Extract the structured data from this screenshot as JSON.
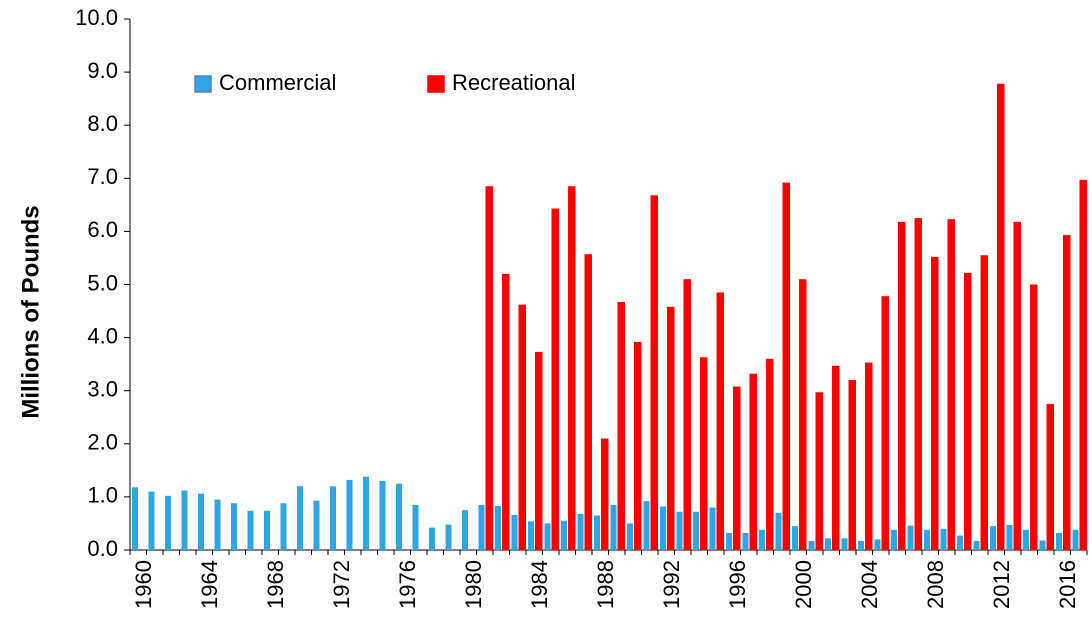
{
  "chart_data": {
    "type": "bar",
    "y_label": "Millions of Pounds",
    "categories": [
      "1960",
      null,
      null,
      null,
      "1964",
      null,
      null,
      null,
      "1968",
      null,
      null,
      null,
      "1972",
      null,
      null,
      null,
      "1976",
      null,
      null,
      null,
      "1980",
      null,
      null,
      null,
      "1984",
      null,
      null,
      null,
      "1988",
      null,
      null,
      null,
      "1992",
      null,
      null,
      null,
      "1996",
      null,
      null,
      null,
      "2000",
      null,
      null,
      null,
      "2004",
      null,
      null,
      null,
      "2008",
      null,
      null,
      null,
      "2012",
      null,
      null,
      null,
      "2016",
      null
    ],
    "series": [
      {
        "name": "Commercial",
        "color": "#2ea6e3",
        "values": [
          1.18,
          1.1,
          1.02,
          1.12,
          1.06,
          0.95,
          0.88,
          0.74,
          0.74,
          0.88,
          1.2,
          0.93,
          1.2,
          1.32,
          1.38,
          1.3,
          1.25,
          0.85,
          0.42,
          0.48,
          0.75,
          0.85,
          0.83,
          0.66,
          0.54,
          0.5,
          0.55,
          0.68,
          0.65,
          0.85,
          0.5,
          0.92,
          0.82,
          0.72,
          0.72,
          0.8,
          0.32,
          0.32,
          0.38,
          0.7,
          0.45,
          0.17,
          0.22,
          0.22,
          0.17,
          0.2,
          0.38,
          0.46,
          0.38,
          0.4,
          0.27,
          0.17,
          0.45,
          0.47,
          0.38,
          0.18,
          0.32,
          0.38
        ]
      },
      {
        "name": "Recreational",
        "color": "#ff0000",
        "values": [
          null,
          null,
          null,
          null,
          null,
          null,
          null,
          null,
          null,
          null,
          null,
          null,
          null,
          null,
          null,
          null,
          null,
          null,
          null,
          null,
          null,
          6.85,
          5.2,
          4.62,
          3.73,
          6.43,
          6.85,
          5.57,
          2.1,
          4.67,
          3.92,
          6.68,
          4.58,
          5.1,
          3.63,
          4.85,
          3.08,
          3.32,
          3.6,
          6.92,
          5.1,
          2.97,
          3.47,
          3.2,
          3.53,
          4.78,
          6.18,
          6.25,
          5.52,
          6.23,
          5.22,
          5.55,
          8.78,
          6.18,
          5.0,
          2.75,
          5.93,
          6.97
        ]
      }
    ],
    "ylim": [
      0,
      10
    ],
    "yticks": [
      {
        "value": 0,
        "label": "0.0"
      },
      {
        "value": 1,
        "label": "1.0"
      },
      {
        "value": 2,
        "label": "2.0"
      },
      {
        "value": 3,
        "label": "3.0"
      },
      {
        "value": 4,
        "label": "4.0"
      },
      {
        "value": 5,
        "label": "5.0"
      },
      {
        "value": 6,
        "label": "6.0"
      },
      {
        "value": 7,
        "label": "7.0"
      },
      {
        "value": 8,
        "label": "8.0"
      },
      {
        "value": 9,
        "label": "9.0"
      },
      {
        "value": 10,
        "label": "10.0"
      }
    ],
    "legend": "upper-left"
  }
}
